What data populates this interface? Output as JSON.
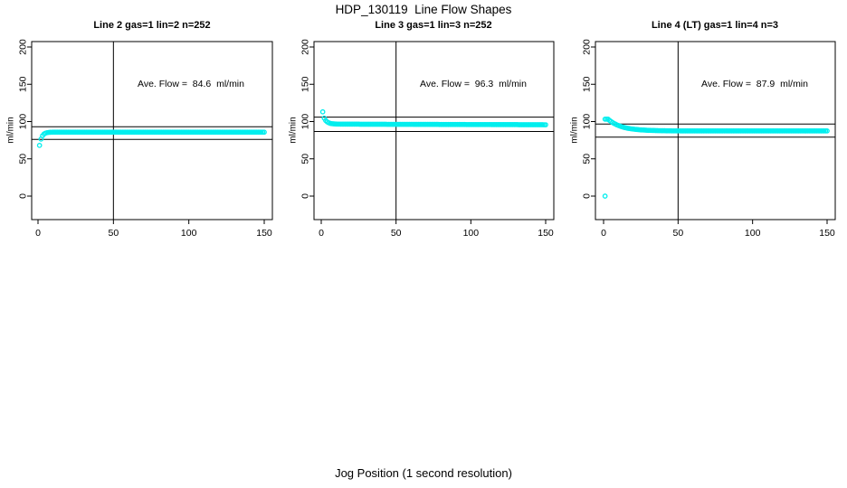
{
  "figure": {
    "main_title": "HDP_130119  Line Flow Shapes",
    "outer_xlabel": "Jog Position (1 second resolution)",
    "background_color": "#ffffff",
    "axis_color": "#000000"
  },
  "chart_data": {
    "type": "scatter",
    "title": "HDP_130119  Line Flow Shapes",
    "xlabel": "Jog Position (1 second resolution)",
    "marker": "open-circle",
    "marker_color": "#00EEEE",
    "legend": "none",
    "grid": false,
    "x_values": [
      1,
      2,
      3,
      4,
      5,
      6,
      7,
      8,
      9,
      10,
      11,
      12,
      13,
      14,
      15,
      16,
      17,
      18,
      19,
      20,
      21,
      22,
      23,
      24,
      25,
      26,
      27,
      28,
      29,
      30,
      31,
      32,
      33,
      34,
      35,
      36,
      37,
      38,
      39,
      40,
      41,
      42,
      43,
      44,
      45,
      46,
      47,
      48,
      49,
      50,
      51,
      52,
      53,
      54,
      55,
      56,
      57,
      58,
      59,
      60,
      61,
      62,
      63,
      64,
      65,
      66,
      67,
      68,
      69,
      70,
      71,
      72,
      73,
      74,
      75,
      76,
      77,
      78,
      79,
      80,
      81,
      82,
      83,
      84,
      85,
      86,
      87,
      88,
      89,
      90,
      91,
      92,
      93,
      94,
      95,
      96,
      97,
      98,
      99,
      100,
      101,
      102,
      103,
      104,
      105,
      106,
      107,
      108,
      109,
      110,
      111,
      112,
      113,
      114,
      115,
      116,
      117,
      118,
      119,
      120,
      121,
      122,
      123,
      124,
      125,
      126,
      127,
      128,
      129,
      130,
      131,
      132,
      133,
      134,
      135,
      136,
      137,
      138,
      139,
      140,
      141,
      142,
      143,
      144,
      145,
      146,
      147,
      148,
      149,
      150
    ],
    "panels": [
      {
        "title": "Line 2 gas=1 lin=2 n=252",
        "annotation": "Ave. Flow =  84.6  ml/min",
        "ave_flow": 84.6,
        "ylabel": "ml/min",
        "ylim": [
          0,
          200
        ],
        "yticks": [
          0,
          50,
          100,
          150,
          200
        ],
        "xticks": [
          0,
          50,
          100,
          150
        ],
        "href_lines": [
          93.1,
          76.1
        ],
        "vref_line": 50,
        "y": [
          68,
          76.5,
          81,
          83.3,
          84.5,
          85.1,
          85.4,
          85.6,
          85.7,
          85.8,
          85.8,
          85.8,
          85.8,
          85.8,
          85.8,
          85.8,
          85.8,
          85.8,
          85.8,
          85.8,
          85.8,
          85.8,
          85.8,
          85.8,
          85.8,
          85.8,
          85.8,
          85.8,
          85.8,
          85.8,
          85.8,
          85.8,
          85.8,
          85.8,
          85.8,
          85.8,
          85.8,
          85.8,
          85.8,
          85.8,
          85.8,
          85.8,
          85.8,
          85.8,
          85.8,
          85.8,
          85.8,
          85.8,
          85.8,
          85.8,
          85.8,
          85.8,
          85.8,
          85.8,
          85.8,
          85.8,
          85.8,
          85.8,
          85.8,
          85.8,
          85.8,
          85.8,
          85.8,
          85.8,
          85.8,
          85.8,
          85.8,
          85.8,
          85.8,
          85.8,
          85.8,
          85.8,
          85.8,
          85.8,
          85.8,
          85.8,
          85.8,
          85.8,
          85.8,
          85.8,
          85.8,
          85.8,
          85.8,
          85.8,
          85.8,
          85.8,
          85.8,
          85.8,
          85.8,
          85.8,
          85.8,
          85.8,
          85.8,
          85.8,
          85.8,
          85.8,
          85.8,
          85.8,
          85.8,
          85.8,
          85.8,
          85.8,
          85.8,
          85.8,
          85.8,
          85.8,
          85.8,
          85.8,
          85.8,
          85.8,
          85.8,
          85.8,
          85.8,
          85.8,
          85.8,
          85.8,
          85.8,
          85.8,
          85.8,
          85.8,
          85.8,
          85.8,
          85.8,
          85.8,
          85.8,
          85.8,
          85.8,
          85.8,
          85.8,
          85.8,
          85.8,
          85.8,
          85.8,
          85.8,
          85.8,
          85.8,
          85.8,
          85.8,
          85.8,
          85.8,
          85.8,
          85.8,
          85.8,
          85.8,
          85.8,
          85.8,
          85.8,
          85.8,
          85.8,
          85.8
        ],
        "extra_points": []
      },
      {
        "title": "Line 3 gas=1 lin=3 n=252",
        "annotation": "Ave. Flow =  96.3  ml/min",
        "ave_flow": 96.3,
        "ylabel": "ml/min",
        "ylim": [
          0,
          200
        ],
        "yticks": [
          0,
          50,
          100,
          150,
          200
        ],
        "xticks": [
          0,
          50,
          100,
          150
        ],
        "href_lines": [
          105.9,
          86.7
        ],
        "vref_line": 50,
        "y": [
          113,
          104.6,
          101.4,
          99.5,
          98.4,
          97.6,
          97.2,
          97,
          96.8,
          96.7,
          96.6,
          96.6,
          96.5,
          96.5,
          96.5,
          96.5,
          96.5,
          96.5,
          96.5,
          96.5,
          96.5,
          96.5,
          96.5,
          96.5,
          96.5,
          96.4,
          96.4,
          96.4,
          96.4,
          96.4,
          96.4,
          96.4,
          96.4,
          96.4,
          96.4,
          96.4,
          96.4,
          96.4,
          96.4,
          96.4,
          96.4,
          96.4,
          96.4,
          96.3,
          96.3,
          96.3,
          96.3,
          96.3,
          96.3,
          96.3,
          96.3,
          96.3,
          96.3,
          96.3,
          96.3,
          96.3,
          96.3,
          96.3,
          96.3,
          96.3,
          96.3,
          96.2,
          96.2,
          96.2,
          96.2,
          96.2,
          96.2,
          96.2,
          96.2,
          96.2,
          96.2,
          96.2,
          96.2,
          96.2,
          96.2,
          96.2,
          96.2,
          96.2,
          96.1,
          96.1,
          96.1,
          96.1,
          96.1,
          96.1,
          96.1,
          96.1,
          96.1,
          96.1,
          96.1,
          96.1,
          96.1,
          96.1,
          96.1,
          96.1,
          96.1,
          96.1,
          96,
          96,
          96,
          96,
          96,
          96,
          96,
          96,
          96,
          96,
          96,
          96,
          96,
          96,
          96,
          96,
          96,
          95.9,
          95.9,
          95.9,
          95.9,
          95.9,
          95.9,
          95.9,
          95.9,
          95.9,
          95.9,
          95.9,
          95.9,
          95.9,
          95.9,
          95.9,
          95.9,
          95.9,
          95.9,
          95.8,
          95.8,
          95.8,
          95.8,
          95.8,
          95.8,
          95.8,
          95.8,
          95.8,
          95.8,
          95.8,
          95.8,
          95.8,
          95.8,
          95.8,
          95.8,
          95.8,
          95.7,
          95.7
        ],
        "extra_points": []
      },
      {
        "title": "Line 4 (LT) gas=1 lin=4 n=3",
        "annotation": "Ave. Flow =  87.9  ml/min",
        "ave_flow": 87.9,
        "ylabel": "ml/min",
        "ylim": [
          0,
          200
        ],
        "yticks": [
          0,
          50,
          100,
          150,
          200
        ],
        "xticks": [
          0,
          50,
          100,
          150
        ],
        "href_lines": [
          96.7,
          79.1
        ],
        "vref_line": 50,
        "y": [
          103.2,
          103.2,
          103.2,
          101.5,
          100.1,
          98.7,
          97.5,
          96.5,
          95.5,
          94.7,
          93.9,
          93.2,
          92.6,
          92,
          91.6,
          91.1,
          90.8,
          90.4,
          90.1,
          89.9,
          89.6,
          89.4,
          89.2,
          89,
          88.8,
          88.7,
          88.6,
          88.5,
          88.3,
          88.2,
          88.2,
          88.1,
          88,
          88,
          87.9,
          87.9,
          87.8,
          87.8,
          87.7,
          87.7,
          87.7,
          87.6,
          87.6,
          87.6,
          87.6,
          87.5,
          87.5,
          87.5,
          87.5,
          87.5,
          87.5,
          87.4,
          87.4,
          87.4,
          87.4,
          87.4,
          87.4,
          87.4,
          87.4,
          87.4,
          87.4,
          87.4,
          87.4,
          87.4,
          87.4,
          87.4,
          87.4,
          87.4,
          87.4,
          87.4,
          87.4,
          87.4,
          87.4,
          87.4,
          87.4,
          87.4,
          87.4,
          87.4,
          87.4,
          87.4,
          87.4,
          87.4,
          87.4,
          87.4,
          87.4,
          87.4,
          87.4,
          87.4,
          87.4,
          87.4,
          87.4,
          87.4,
          87.4,
          87.4,
          87.4,
          87.4,
          87.4,
          87.4,
          87.4,
          87.4,
          87.4,
          87.4,
          87.4,
          87.4,
          87.4,
          87.4,
          87.4,
          87.4,
          87.4,
          87.4,
          87.4,
          87.4,
          87.4,
          87.4,
          87.4,
          87.4,
          87.4,
          87.4,
          87.4,
          87.4,
          87.4,
          87.4,
          87.4,
          87.4,
          87.4,
          87.4,
          87.4,
          87.4,
          87.4,
          87.4,
          87.4,
          87.4,
          87.4,
          87.4,
          87.4,
          87.4,
          87.4,
          87.4,
          87.4,
          87.4,
          87.4,
          87.4,
          87.4,
          87.4,
          87.4,
          87.4,
          87.4,
          87.4,
          87.4,
          87.4
        ],
        "extra_points": [
          [
            1,
            0
          ]
        ]
      }
    ]
  }
}
